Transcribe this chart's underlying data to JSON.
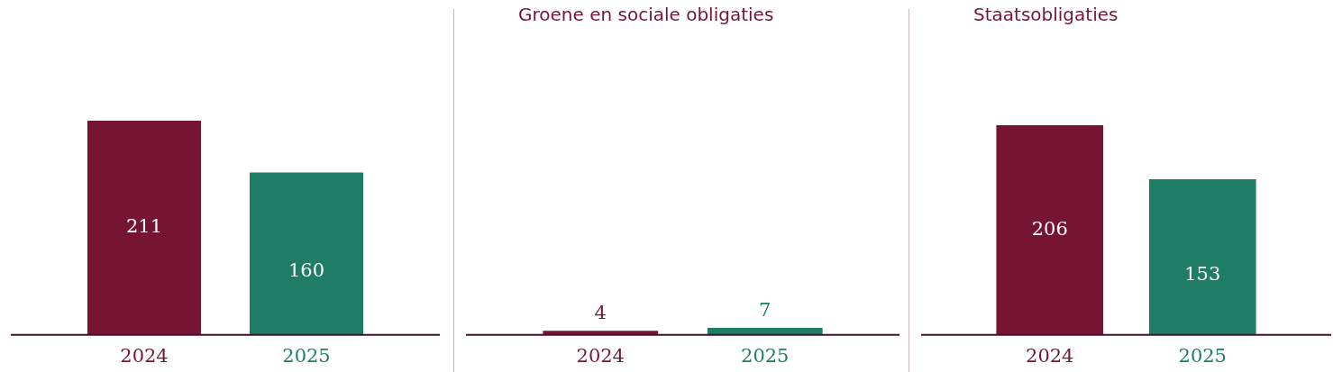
{
  "chart_data": [
    {
      "type": "bar",
      "categories": [
        "2024",
        "2025"
      ],
      "values": [
        211,
        160
      ],
      "colors": [
        "#761434",
        "#1f7d65"
      ],
      "data_labels": true
    },
    {
      "type": "bar",
      "title": "Groene en sociale obligaties",
      "categories": [
        "2024",
        "2025"
      ],
      "values": [
        4,
        7
      ],
      "colors": [
        "#761434",
        "#1f7d65"
      ],
      "data_labels": true
    },
    {
      "type": "bar",
      "title": "Staatsobligaties",
      "categories": [
        "2024",
        "2025"
      ],
      "values": [
        206,
        153
      ],
      "colors": [
        "#761434",
        "#1f7d65"
      ],
      "data_labels": true
    }
  ]
}
